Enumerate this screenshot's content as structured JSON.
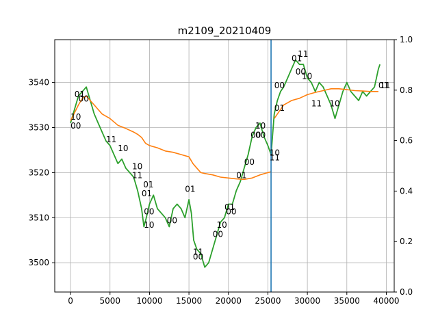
{
  "chart_data": {
    "type": "line",
    "title": "m2109_20210409",
    "xlim": [
      -2000,
      41000
    ],
    "ylim": [
      3493.5,
      3549.5
    ],
    "y2lim": [
      0.0,
      1.0
    ],
    "x_ticks": [
      0,
      5000,
      10000,
      15000,
      20000,
      25000,
      30000,
      35000,
      40000
    ],
    "y_ticks": [
      3500,
      3510,
      3520,
      3530,
      3540
    ],
    "y2_ticks": [
      0.0,
      0.2,
      0.4,
      0.6,
      0.8,
      1.0
    ],
    "grid": true,
    "vline_x": 25400,
    "colors": {
      "price": "#2ca02c",
      "average": "#ff7f0e",
      "marker": "#1f77b4",
      "axes": "#000000",
      "grid": "#b0b0b0"
    },
    "series": [
      {
        "key": "price",
        "points": [
          [
            0,
            3531
          ],
          [
            500,
            3534
          ],
          [
            1000,
            3537
          ],
          [
            1500,
            3538
          ],
          [
            2000,
            3539
          ],
          [
            2500,
            3536
          ],
          [
            3000,
            3533
          ],
          [
            3500,
            3531
          ],
          [
            4000,
            3529
          ],
          [
            4500,
            3527
          ],
          [
            5000,
            3526
          ],
          [
            5500,
            3524
          ],
          [
            6000,
            3522
          ],
          [
            6500,
            3523
          ],
          [
            7000,
            3521
          ],
          [
            7500,
            3520
          ],
          [
            8000,
            3519
          ],
          [
            8500,
            3516
          ],
          [
            9000,
            3512
          ],
          [
            9300,
            3508
          ],
          [
            9600,
            3510
          ],
          [
            10000,
            3513
          ],
          [
            10500,
            3515
          ],
          [
            11000,
            3512
          ],
          [
            11500,
            3511
          ],
          [
            12000,
            3510
          ],
          [
            12500,
            3508
          ],
          [
            13000,
            3512
          ],
          [
            13500,
            3513
          ],
          [
            14000,
            3512
          ],
          [
            14500,
            3510
          ],
          [
            15000,
            3514
          ],
          [
            15300,
            3511
          ],
          [
            15600,
            3505
          ],
          [
            16000,
            3503
          ],
          [
            16500,
            3502
          ],
          [
            17000,
            3499
          ],
          [
            17500,
            3500
          ],
          [
            18000,
            3503
          ],
          [
            18500,
            3506
          ],
          [
            19000,
            3509
          ],
          [
            19500,
            3510
          ],
          [
            20000,
            3513
          ],
          [
            20500,
            3513
          ],
          [
            21000,
            3516
          ],
          [
            21500,
            3518
          ],
          [
            22000,
            3521
          ],
          [
            22500,
            3524
          ],
          [
            23000,
            3528
          ],
          [
            23500,
            3530
          ],
          [
            24000,
            3531
          ],
          [
            24500,
            3528
          ],
          [
            25000,
            3526
          ],
          [
            25400,
            3524
          ],
          [
            25800,
            3533
          ],
          [
            26200,
            3536
          ],
          [
            26600,
            3538
          ],
          [
            27000,
            3539
          ],
          [
            27500,
            3541
          ],
          [
            28000,
            3543
          ],
          [
            28500,
            3545
          ],
          [
            29000,
            3544
          ],
          [
            29500,
            3544
          ],
          [
            30000,
            3541
          ],
          [
            30500,
            3540
          ],
          [
            31000,
            3538
          ],
          [
            31500,
            3540
          ],
          [
            32000,
            3539
          ],
          [
            32500,
            3537
          ],
          [
            33000,
            3535
          ],
          [
            33500,
            3532
          ],
          [
            34000,
            3535
          ],
          [
            34500,
            3538
          ],
          [
            35000,
            3540
          ],
          [
            35500,
            3538
          ],
          [
            36000,
            3537
          ],
          [
            36500,
            3536
          ],
          [
            37000,
            3538
          ],
          [
            37500,
            3537
          ],
          [
            38000,
            3538
          ],
          [
            38500,
            3539
          ],
          [
            39000,
            3543
          ],
          [
            39200,
            3544
          ]
        ]
      },
      {
        "key": "average",
        "points": [
          [
            0,
            3531.5
          ],
          [
            1000,
            3535
          ],
          [
            1500,
            3536.5
          ],
          [
            2000,
            3537
          ],
          [
            2500,
            3536
          ],
          [
            3000,
            3535
          ],
          [
            3500,
            3534
          ],
          [
            4000,
            3533
          ],
          [
            5000,
            3532
          ],
          [
            6000,
            3530.5
          ],
          [
            7000,
            3529.8
          ],
          [
            8000,
            3529
          ],
          [
            8500,
            3528.5
          ],
          [
            9000,
            3527.8
          ],
          [
            9500,
            3526.5
          ],
          [
            10000,
            3526
          ],
          [
            11000,
            3525.5
          ],
          [
            12000,
            3524.8
          ],
          [
            13000,
            3524.5
          ],
          [
            14000,
            3524
          ],
          [
            15000,
            3523.5
          ],
          [
            15500,
            3522
          ],
          [
            16000,
            3521
          ],
          [
            16500,
            3520
          ],
          [
            17000,
            3519.8
          ],
          [
            18000,
            3519.5
          ],
          [
            19000,
            3519
          ],
          [
            20000,
            3518.8
          ],
          [
            21000,
            3518.6
          ],
          [
            22000,
            3518.5
          ],
          [
            23000,
            3518.8
          ],
          [
            24000,
            3519.5
          ],
          [
            25000,
            3520
          ],
          [
            25400,
            3520.2
          ]
        ]
      },
      {
        "key": "average-2",
        "points": [
          [
            25800,
            3532
          ],
          [
            26200,
            3533
          ],
          [
            26600,
            3534
          ],
          [
            27000,
            3535
          ],
          [
            27500,
            3535.5
          ],
          [
            28000,
            3536
          ],
          [
            29000,
            3536.5
          ],
          [
            30000,
            3537.3
          ],
          [
            31000,
            3537.8
          ],
          [
            32000,
            3538.2
          ],
          [
            33000,
            3538.6
          ],
          [
            34000,
            3538.6
          ],
          [
            35000,
            3538.4
          ],
          [
            36000,
            3538.2
          ],
          [
            37000,
            3538.1
          ],
          [
            38000,
            3538
          ],
          [
            39000,
            3538
          ]
        ]
      }
    ],
    "annotations": [
      {
        "text": "10",
        "x": 0,
        "y": 3532.5
      },
      {
        "text": "00",
        "x": 0,
        "y": 3530.5
      },
      {
        "text": "01",
        "x": 500,
        "y": 3537.5
      },
      {
        "text": "00",
        "x": 1000,
        "y": 3536.5
      },
      {
        "text": "11",
        "x": 4500,
        "y": 3527.5
      },
      {
        "text": "10",
        "x": 6000,
        "y": 3525.5
      },
      {
        "text": "10",
        "x": 7800,
        "y": 3521.5
      },
      {
        "text": "11",
        "x": 7800,
        "y": 3519.5
      },
      {
        "text": "01",
        "x": 9200,
        "y": 3517.5
      },
      {
        "text": "01",
        "x": 9000,
        "y": 3515.5
      },
      {
        "text": "00",
        "x": 9300,
        "y": 3511.5
      },
      {
        "text": "10",
        "x": 9300,
        "y": 3508.5
      },
      {
        "text": "00",
        "x": 12200,
        "y": 3509.5
      },
      {
        "text": "01",
        "x": 14500,
        "y": 3516.5
      },
      {
        "text": "11",
        "x": 15500,
        "y": 3502.5
      },
      {
        "text": "00",
        "x": 15500,
        "y": 3501.5
      },
      {
        "text": "10",
        "x": 18500,
        "y": 3508.5
      },
      {
        "text": "00",
        "x": 18000,
        "y": 3506.5
      },
      {
        "text": "01",
        "x": 19500,
        "y": 3512.5
      },
      {
        "text": "00",
        "x": 19700,
        "y": 3511.5
      },
      {
        "text": "01",
        "x": 21000,
        "y": 3519.5
      },
      {
        "text": "00",
        "x": 22000,
        "y": 3522.5
      },
      {
        "text": "00",
        "x": 22800,
        "y": 3528.5
      },
      {
        "text": "10",
        "x": 23400,
        "y": 3530.5
      },
      {
        "text": "00",
        "x": 23400,
        "y": 3528.5
      },
      {
        "text": "10",
        "x": 25200,
        "y": 3524.5
      },
      {
        "text": "11",
        "x": 25200,
        "y": 3523.5
      },
      {
        "text": "00",
        "x": 25800,
        "y": 3539.5
      },
      {
        "text": "01",
        "x": 25800,
        "y": 3534.5
      },
      {
        "text": "11",
        "x": 28800,
        "y": 3546.5
      },
      {
        "text": "01",
        "x": 28000,
        "y": 3545.5
      },
      {
        "text": "00",
        "x": 28500,
        "y": 3542.5
      },
      {
        "text": "10",
        "x": 29300,
        "y": 3541.5
      },
      {
        "text": "11",
        "x": 30500,
        "y": 3535.5
      },
      {
        "text": "10",
        "x": 32800,
        "y": 3535.5
      },
      {
        "text": "01",
        "x": 39000,
        "y": 3539.5
      },
      {
        "text": "11",
        "x": 39200,
        "y": 3539.5
      }
    ]
  }
}
